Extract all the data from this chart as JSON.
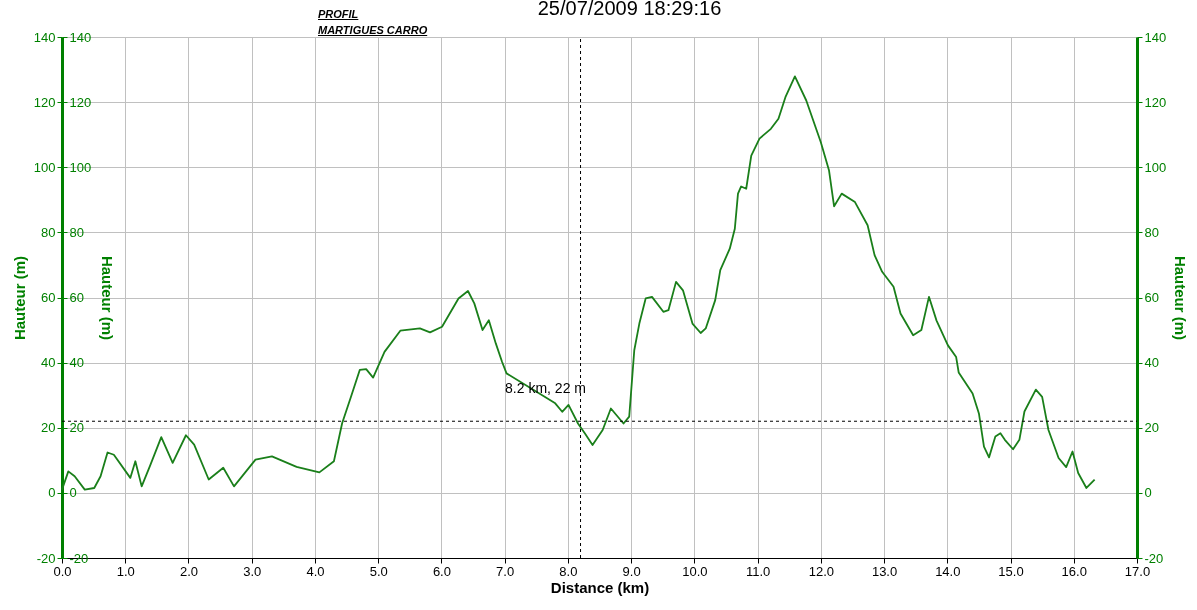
{
  "chart_data": {
    "type": "line",
    "title": "25/07/2009 18:29:16",
    "xlabel": "Distance (km)",
    "ylabel": "Hauteur (m)",
    "y2label": "Hauteur (m)",
    "y3label": "Hauteur (m)",
    "annotations": [
      "PROFIL",
      "MARTIGUES CARRO",
      {
        "text": "8.2 km, 22 m",
        "x": 8.2,
        "y": 22
      }
    ],
    "series": [
      {
        "color": "#1a7f1a",
        "x": [
          0,
          0.1,
          0.2,
          0.36,
          0.51,
          0.61,
          0.72,
          0.82,
          1.08,
          1.16,
          1.26,
          1.39,
          1.57,
          1.75,
          1.96,
          2.09,
          2.32,
          2.55,
          2.72,
          3.06,
          3.32,
          3.71,
          4.07,
          4.3,
          4.43,
          4.57,
          4.71,
          4.81,
          4.92,
          5.1,
          5.35,
          5.66,
          5.82,
          6.01,
          6.27,
          6.42,
          6.52,
          6.65,
          6.75,
          6.86,
          6.96,
          7.03,
          7.8,
          7.91,
          8.01,
          8.16,
          8.27,
          8.39,
          8.55,
          8.68,
          8.88,
          8.97,
          9.05,
          9.13,
          9.23,
          9.33,
          9.51,
          9.59,
          9.71,
          9.82,
          9.97,
          10.1,
          10.18,
          10.33,
          10.41,
          10.56,
          10.64,
          10.69,
          10.74,
          10.82,
          10.9,
          11.03,
          11.21,
          11.33,
          11.44,
          11.59,
          11.77,
          12.0,
          12.13,
          12.21,
          12.33,
          12.54,
          12.74,
          12.85,
          12.97,
          13.15,
          13.26,
          13.46,
          13.59,
          13.71,
          13.83,
          14.01,
          14.14,
          14.18,
          14.4,
          14.5,
          14.58,
          14.66,
          14.76,
          14.84,
          14.91,
          15.04,
          15.14,
          15.22,
          15.4,
          15.5,
          15.6,
          15.76,
          15.88,
          15.98,
          16.07,
          16.2,
          16.33
        ],
        "values": [
          1,
          6.6,
          5.1,
          1,
          1.5,
          5.1,
          12.4,
          11.7,
          4.6,
          9.7,
          2,
          8.2,
          17.1,
          9.2,
          17.7,
          14.8,
          4.1,
          7.7,
          2,
          10.2,
          11.2,
          8,
          6.3,
          9.7,
          21.4,
          29.5,
          37.8,
          38,
          35.4,
          43.3,
          49.8,
          50.5,
          49.3,
          51,
          59.7,
          62,
          58.2,
          50,
          53,
          45.9,
          40.2,
          36.7,
          27.5,
          24.9,
          27,
          21.3,
          18.2,
          14.7,
          19.3,
          25.9,
          21.3,
          23.4,
          43.8,
          52,
          59.7,
          60.2,
          55.6,
          56.1,
          64.8,
          62.2,
          52,
          49.1,
          50.5,
          59.2,
          68.4,
          75,
          81.1,
          91.9,
          94.1,
          93.4,
          103.6,
          108.8,
          111.8,
          114.9,
          121.5,
          127.9,
          120.5,
          107.7,
          99,
          88,
          91.9,
          89.3,
          82.2,
          73,
          67.9,
          63.3,
          55.1,
          48.4,
          50,
          60.2,
          52.9,
          45.3,
          41.7,
          37,
          30.5,
          24.4,
          14.2,
          10.9,
          17.3,
          18.3,
          16.3,
          13.4,
          16.3,
          25,
          31.7,
          29.5,
          19.3,
          10.7,
          7.9,
          12.7,
          6.1,
          1.5,
          4.1
        ]
      }
    ],
    "xlim": [
      0,
      17
    ],
    "xticks": [
      {
        "value": 0,
        "label": "0.0"
      },
      {
        "value": 1,
        "label": "1.0"
      },
      {
        "value": 2,
        "label": "2.0"
      },
      {
        "value": 3,
        "label": "3.0"
      },
      {
        "value": 4,
        "label": "4.0"
      },
      {
        "value": 5,
        "label": "5.0"
      },
      {
        "value": 6,
        "label": "6.0"
      },
      {
        "value": 7,
        "label": "7.0"
      },
      {
        "value": 8,
        "label": "8.0"
      },
      {
        "value": 9,
        "label": "9.0"
      },
      {
        "value": 10,
        "label": "10.0"
      },
      {
        "value": 11,
        "label": "11.0"
      },
      {
        "value": 12,
        "label": "12.0"
      },
      {
        "value": 13,
        "label": "13.0"
      },
      {
        "value": 14,
        "label": "14.0"
      },
      {
        "value": 15,
        "label": "15.0"
      },
      {
        "value": 16,
        "label": "16.0"
      },
      {
        "value": 17,
        "label": "17.0"
      }
    ],
    "ylim": [
      -20,
      140
    ],
    "yticks": [
      -20,
      0,
      20,
      40,
      60,
      80,
      100,
      120,
      140
    ],
    "y2lim": [
      -20,
      140
    ],
    "y2ticks": [
      -20,
      0,
      20,
      40,
      60,
      80,
      100,
      120,
      140
    ],
    "y3lim": [
      -20,
      140
    ],
    "y3ticks": [
      -20,
      0,
      20,
      40,
      60,
      80,
      100,
      120,
      140
    ],
    "ref_lines": [
      {
        "axis": "x",
        "value": 8.2,
        "color": "#000000",
        "line_style": "dashed"
      },
      {
        "axis": "y",
        "value": 22,
        "color": "#000000",
        "line_style": "dashed"
      }
    ],
    "grid": true,
    "legend": false,
    "marker": "none",
    "line_style": "solid"
  }
}
